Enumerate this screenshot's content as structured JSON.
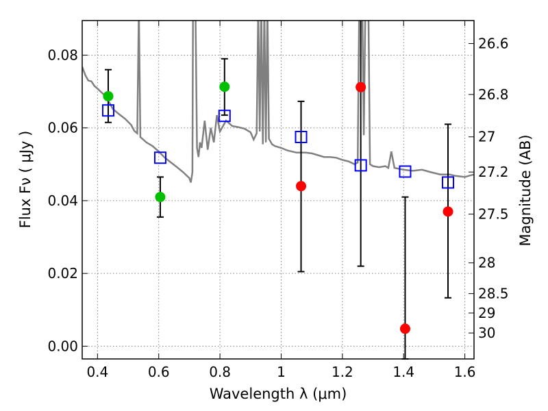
{
  "chart_data": {
    "type": "scatter",
    "title": "",
    "xlabel": "Wavelength  λ (μm)",
    "ylabel_left": "Flux  Fν ( μJy )",
    "ylabel_right": "Magnitude (AB)",
    "xlim": [
      0.35,
      1.63
    ],
    "ylim": [
      -0.0035,
      0.0895
    ],
    "grid": true,
    "x_ticks": [
      {
        "value": 0.4,
        "label": "0.4"
      },
      {
        "value": 0.6,
        "label": "0.6"
      },
      {
        "value": 0.8,
        "label": "0.8"
      },
      {
        "value": 1.0,
        "label": "1"
      },
      {
        "value": 1.2,
        "label": "1.2"
      },
      {
        "value": 1.4,
        "label": "1.4"
      },
      {
        "value": 1.6,
        "label": "1.6"
      }
    ],
    "y_ticks": [
      {
        "value": 0.0,
        "label": "0.00"
      },
      {
        "value": 0.02,
        "label": "0.02"
      },
      {
        "value": 0.04,
        "label": "0.04"
      },
      {
        "value": 0.06,
        "label": "0.06"
      },
      {
        "value": 0.08,
        "label": "0.08"
      }
    ],
    "mag_ticks": [
      {
        "value": 26.6,
        "label": "26.6"
      },
      {
        "value": 26.8,
        "label": "26.8"
      },
      {
        "value": 27.0,
        "label": "27"
      },
      {
        "value": 27.2,
        "label": "27.2"
      },
      {
        "value": 27.5,
        "label": "27.5"
      },
      {
        "value": 28.0,
        "label": "28"
      },
      {
        "value": 28.5,
        "label": "28.5"
      },
      {
        "value": 29.0,
        "label": "29"
      },
      {
        "value": 30.0,
        "label": "30"
      }
    ],
    "colors": {
      "model": "#808080",
      "green": "#00c000",
      "red": "#ff0000",
      "square": "#0000ff",
      "errorbar": "#000000"
    },
    "model_spectrum": [
      [
        0.35,
        0.0768
      ],
      [
        0.36,
        0.0745
      ],
      [
        0.37,
        0.073
      ],
      [
        0.38,
        0.0728
      ],
      [
        0.39,
        0.0715
      ],
      [
        0.4,
        0.0708
      ],
      [
        0.41,
        0.07
      ],
      [
        0.42,
        0.0692
      ],
      [
        0.43,
        0.0678
      ],
      [
        0.44,
        0.0668
      ],
      [
        0.45,
        0.0652
      ],
      [
        0.47,
        0.0638
      ],
      [
        0.49,
        0.0625
      ],
      [
        0.51,
        0.0608
      ],
      [
        0.52,
        0.0592
      ],
      [
        0.53,
        0.0585
      ],
      [
        0.535,
        0.0935
      ],
      [
        0.54,
        0.0575
      ],
      [
        0.56,
        0.056
      ],
      [
        0.58,
        0.055
      ],
      [
        0.6,
        0.0535
      ],
      [
        0.62,
        0.0518
      ],
      [
        0.64,
        0.0505
      ],
      [
        0.66,
        0.0492
      ],
      [
        0.68,
        0.0478
      ],
      [
        0.7,
        0.0462
      ],
      [
        0.705,
        0.045
      ],
      [
        0.71,
        0.0478
      ],
      [
        0.712,
        0.0935
      ],
      [
        0.72,
        0.0935
      ],
      [
        0.725,
        0.0545
      ],
      [
        0.73,
        0.052
      ],
      [
        0.735,
        0.056
      ],
      [
        0.74,
        0.0545
      ],
      [
        0.75,
        0.062
      ],
      [
        0.76,
        0.054
      ],
      [
        0.77,
        0.06
      ],
      [
        0.78,
        0.056
      ],
      [
        0.79,
        0.0635
      ],
      [
        0.8,
        0.059
      ],
      [
        0.82,
        0.062
      ],
      [
        0.84,
        0.0605
      ],
      [
        0.86,
        0.0602
      ],
      [
        0.88,
        0.0598
      ],
      [
        0.9,
        0.0588
      ],
      [
        0.91,
        0.0568
      ],
      [
        0.92,
        0.0585
      ],
      [
        0.925,
        0.0935
      ],
      [
        0.93,
        0.059
      ],
      [
        0.935,
        0.0935
      ],
      [
        0.94,
        0.0555
      ],
      [
        0.945,
        0.0935
      ],
      [
        0.95,
        0.056
      ],
      [
        0.955,
        0.0935
      ],
      [
        0.96,
        0.057
      ],
      [
        0.97,
        0.0555
      ],
      [
        0.98,
        0.055
      ],
      [
        1.0,
        0.0545
      ],
      [
        1.02,
        0.0538
      ],
      [
        1.05,
        0.0532
      ],
      [
        1.08,
        0.0532
      ],
      [
        1.1,
        0.053
      ],
      [
        1.12,
        0.0525
      ],
      [
        1.14,
        0.052
      ],
      [
        1.16,
        0.052
      ],
      [
        1.18,
        0.0518
      ],
      [
        1.2,
        0.0512
      ],
      [
        1.22,
        0.0508
      ],
      [
        1.24,
        0.05
      ],
      [
        1.25,
        0.0505
      ],
      [
        1.255,
        0.0935
      ],
      [
        1.265,
        0.0935
      ],
      [
        1.27,
        0.058
      ],
      [
        1.275,
        0.0935
      ],
      [
        1.285,
        0.0935
      ],
      [
        1.29,
        0.05
      ],
      [
        1.3,
        0.0495
      ],
      [
        1.32,
        0.0492
      ],
      [
        1.34,
        0.0495
      ],
      [
        1.35,
        0.049
      ],
      [
        1.36,
        0.0535
      ],
      [
        1.37,
        0.049
      ],
      [
        1.4,
        0.0485
      ],
      [
        1.43,
        0.0482
      ],
      [
        1.46,
        0.0485
      ],
      [
        1.49,
        0.0478
      ],
      [
        1.52,
        0.0472
      ],
      [
        1.55,
        0.0472
      ],
      [
        1.57,
        0.0468
      ],
      [
        1.6,
        0.0465
      ],
      [
        1.62,
        0.047
      ],
      [
        1.63,
        0.0472
      ]
    ],
    "green_points": [
      {
        "x": 0.435,
        "y": 0.0687,
        "yerr_low": 0.0615,
        "yerr_high": 0.076
      },
      {
        "x": 0.605,
        "y": 0.041,
        "yerr_low": 0.0355,
        "yerr_high": 0.0465
      },
      {
        "x": 0.815,
        "y": 0.0713,
        "yerr_low": 0.0635,
        "yerr_high": 0.079
      }
    ],
    "red_points": [
      {
        "x": 1.065,
        "y": 0.044,
        "yerr_low": 0.0205,
        "yerr_high": 0.0673
      },
      {
        "x": 1.26,
        "y": 0.0712,
        "yerr_low": 0.022,
        "yerr_high": 0.0935
      },
      {
        "x": 1.405,
        "y": 0.0048,
        "yerr_low": -0.0035,
        "yerr_high": 0.041
      },
      {
        "x": 1.545,
        "y": 0.037,
        "yerr_low": 0.0133,
        "yerr_high": 0.061
      }
    ],
    "open_squares": [
      {
        "x": 0.435,
        "y": 0.0648
      },
      {
        "x": 0.605,
        "y": 0.0518
      },
      {
        "x": 0.815,
        "y": 0.0633
      },
      {
        "x": 1.065,
        "y": 0.0575
      },
      {
        "x": 1.26,
        "y": 0.0497
      },
      {
        "x": 1.405,
        "y": 0.048
      },
      {
        "x": 1.545,
        "y": 0.045
      }
    ]
  }
}
